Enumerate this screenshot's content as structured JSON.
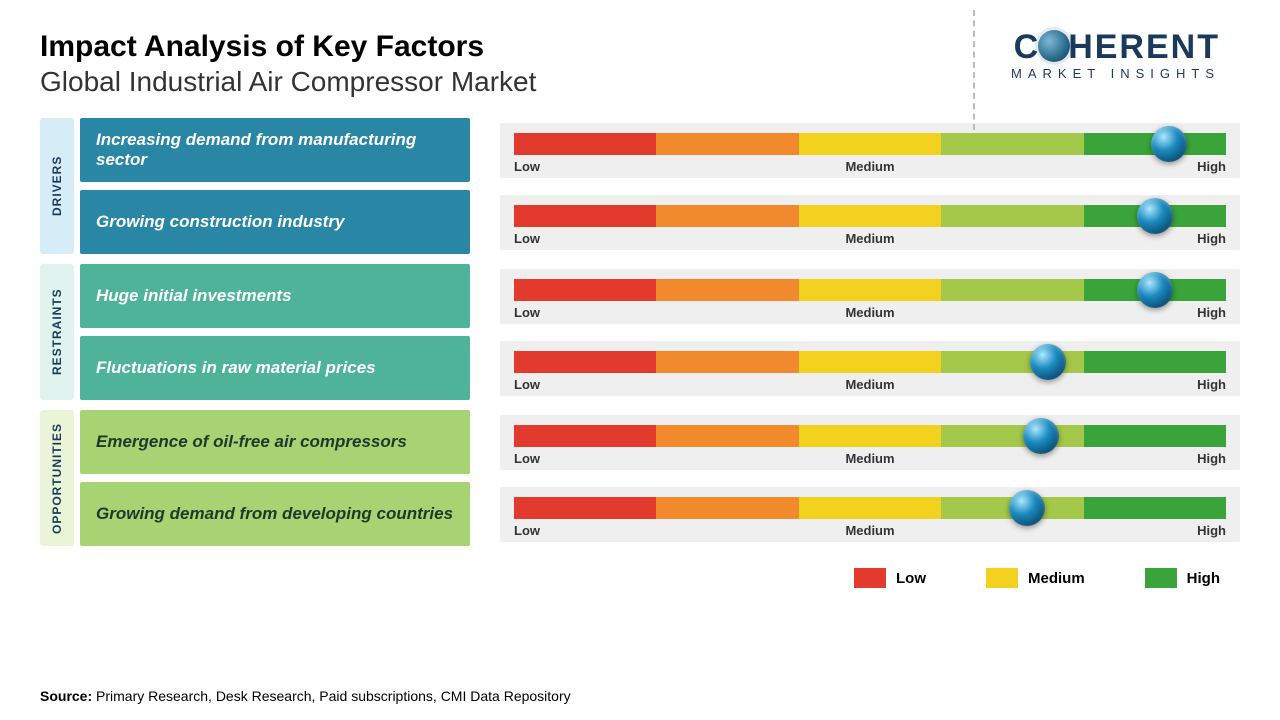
{
  "title": "Impact Analysis of Key Factors",
  "subtitle": "Global Industrial Air Compressor Market",
  "logo": {
    "prefix": "C",
    "suffix": "HERENT",
    "sub": "MARKET INSIGHTS",
    "color": "#1a3a5c"
  },
  "scale_labels": {
    "low": "Low",
    "medium": "Medium",
    "high": "High"
  },
  "scale_segments": [
    {
      "color": "#e23b2e"
    },
    {
      "color": "#f08a2c"
    },
    {
      "color": "#f2d21f"
    },
    {
      "color": "#a4c84a"
    },
    {
      "color": "#3aa43a"
    }
  ],
  "categories": [
    {
      "name": "DRIVERS",
      "bg": "#d6ecf7",
      "row_color": "#2a86a5",
      "text_color": "#ffffff",
      "factors": [
        {
          "label": "Increasing demand from manufacturing sector",
          "marker_pct": 92
        },
        {
          "label": "Growing construction industry",
          "marker_pct": 90
        }
      ]
    },
    {
      "name": "RESTRAINTS",
      "bg": "#e0f3ef",
      "row_color": "#4fb39a",
      "text_color": "#ffffff",
      "factors": [
        {
          "label": "Huge initial investments",
          "marker_pct": 90
        },
        {
          "label": "Fluctuations in raw material prices",
          "marker_pct": 75
        }
      ]
    },
    {
      "name": "OPPORTUNITIES",
      "bg": "#eaf5d8",
      "row_color": "#a8d373",
      "text_color": "#1a3a2a",
      "factors": [
        {
          "label": "Emergence of oil-free air compressors",
          "marker_pct": 74
        },
        {
          "label": "Growing demand from developing countries",
          "marker_pct": 72
        }
      ]
    }
  ],
  "legend": [
    {
      "label": "Low",
      "color": "#e23b2e"
    },
    {
      "label": "Medium",
      "color": "#f2d21f"
    },
    {
      "label": "High",
      "color": "#3aa43a"
    }
  ],
  "source_prefix": "Source:",
  "source_text": " Primary Research, Desk Research, Paid subscriptions, CMI Data Repository"
}
